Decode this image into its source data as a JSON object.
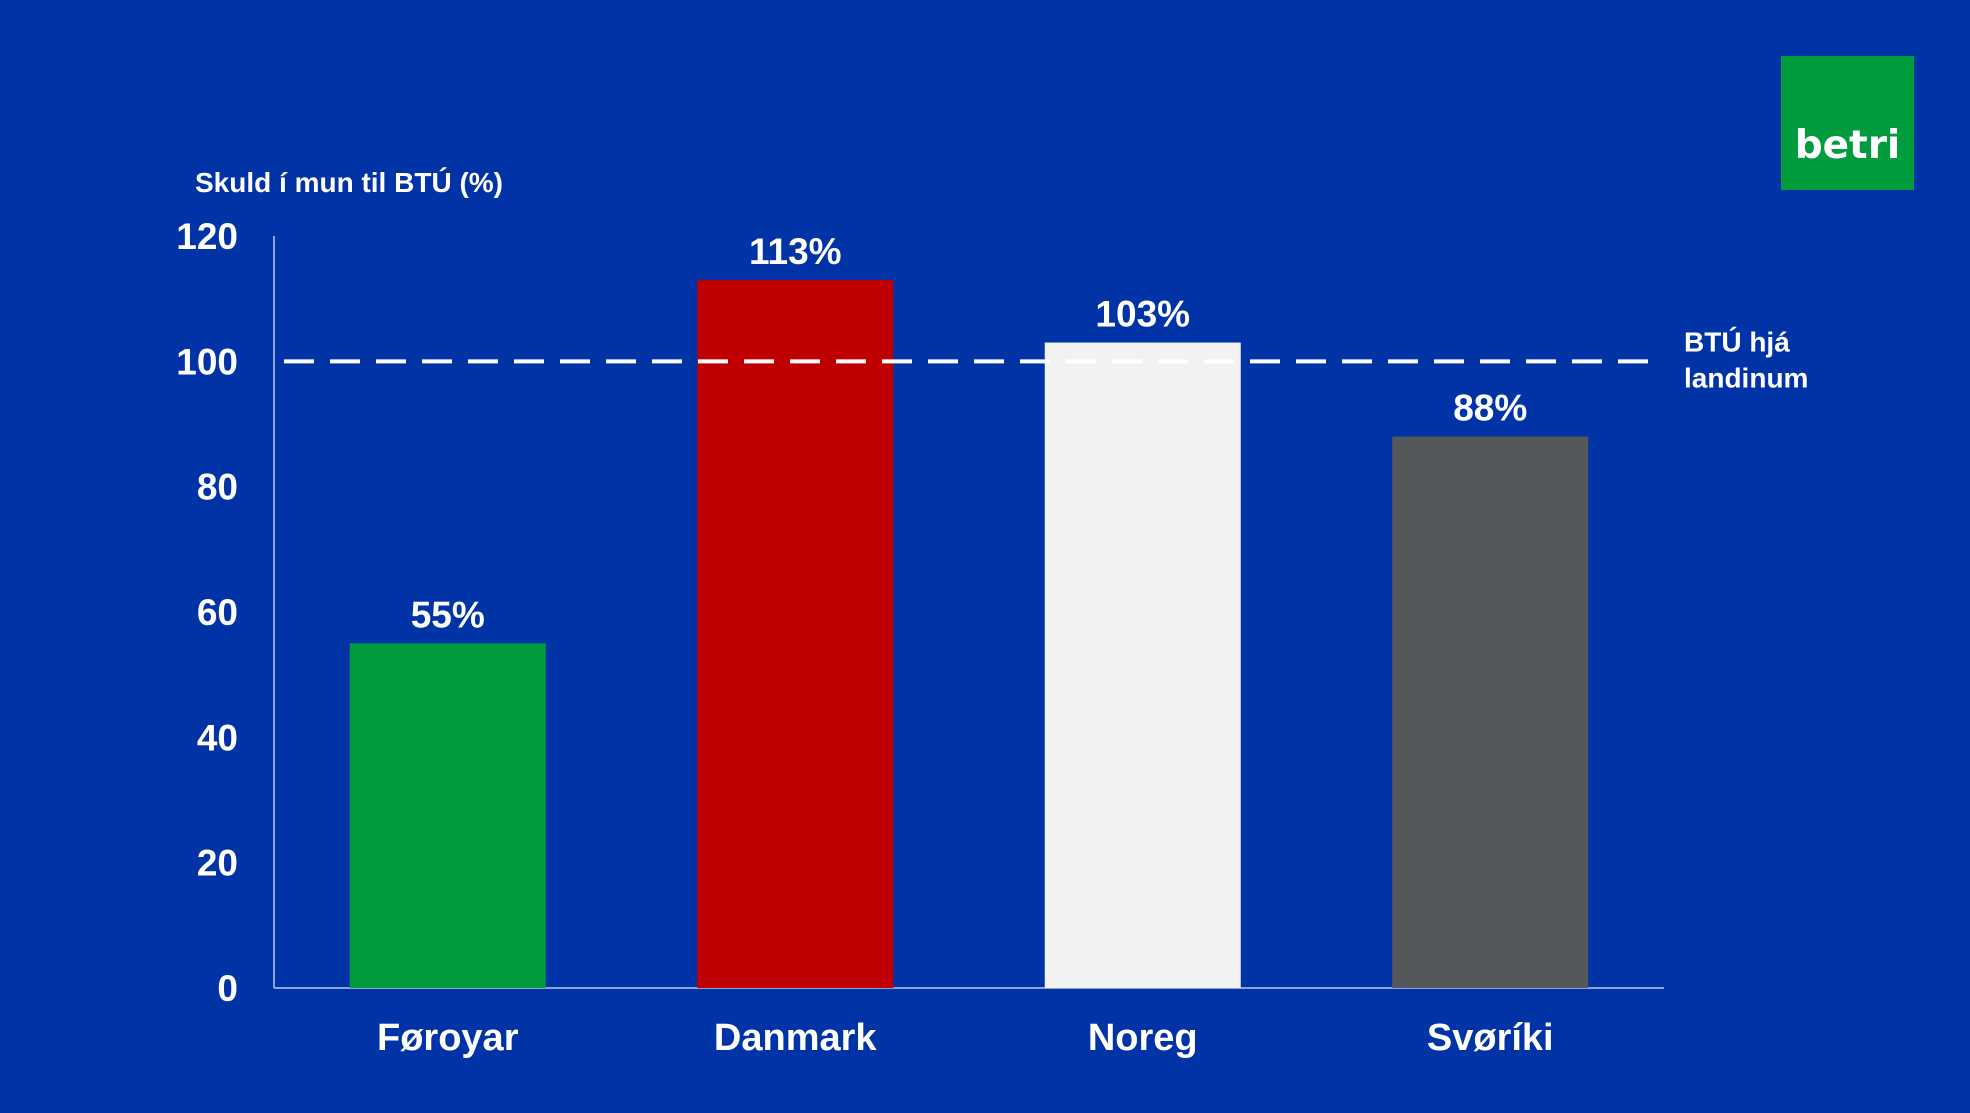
{
  "logo_text": "betri",
  "colors": {
    "background": "#0033a6",
    "axis": "#8ea2d8",
    "reference_line": "#ffffff",
    "text": "#ffffff"
  },
  "chart_data": {
    "type": "bar",
    "ylabel": "Skuld í mun til BTÚ (%)",
    "ylim": [
      0,
      120
    ],
    "yticks": [
      "0",
      "20",
      "40",
      "60",
      "80",
      "100",
      "120"
    ],
    "categories": [
      "Føroyar",
      "Danmark",
      "Noreg",
      "Svøríki"
    ],
    "values": [
      55,
      113,
      103,
      88
    ],
    "value_labels": [
      "55%",
      "113%",
      "103%",
      "88%"
    ],
    "bar_colors": [
      "#009c3d",
      "#c00000",
      "#f2f2f2",
      "#54585a"
    ],
    "reference_line": {
      "value": 100,
      "label_lines": [
        "BTÚ hjá",
        "landinum"
      ],
      "style": "dashed"
    },
    "grid": false,
    "legend": "none"
  }
}
